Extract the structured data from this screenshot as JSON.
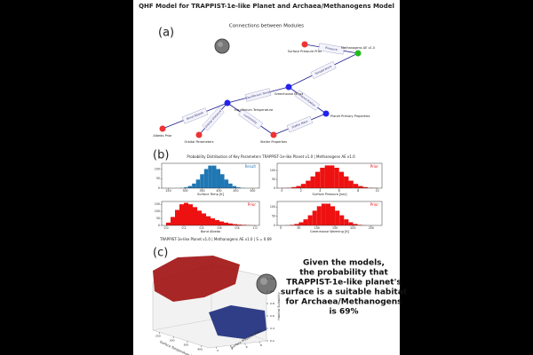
{
  "title": "QHF Model for TRAPPIST-1e-like Planet and Archaea/Methanogens Model",
  "panel_a": {
    "label": "(a)",
    "title": "Connections between Modules",
    "nodes": [
      {
        "label": "Albedo Prior",
        "color": "#ee3333"
      },
      {
        "label": "Orbital Parameters",
        "color": "#ee3333"
      },
      {
        "label": "Equilibrium Temperature",
        "color": "#2222ee"
      },
      {
        "label": "Greenhouse Effect",
        "color": "#2222ee"
      },
      {
        "label": "Stellar Properties",
        "color": "#ee3333"
      },
      {
        "label": "Planet Primary Properties",
        "color": "#2222ee"
      },
      {
        "label": "Surface Pressure Prior",
        "color": "#ee3333"
      },
      {
        "label": "Methanogens AE v1.0",
        "color": "#22bb22"
      }
    ],
    "edges": [
      {
        "label": "Bond Albedo"
      },
      {
        "label": "Orbital Distance"
      },
      {
        "label": "Equilibrium Temp"
      },
      {
        "label": "Luminosity"
      },
      {
        "label": "Planet Radius"
      },
      {
        "label": "Stellar Mass"
      },
      {
        "label": "Temperature"
      },
      {
        "label": "Pressure"
      }
    ]
  },
  "panel_b": {
    "label": "(b)",
    "title": "Probability Distribution of Key Parameters  TRAPPIST-1e-like Planet v1.0 | Methanogens AE v1.0"
  },
  "chart_data": [
    {
      "type": "histogram",
      "name": "Result",
      "color": "#1f77b4",
      "xlabel": "Surface Temp [K]",
      "bins": [
        260,
        272,
        284,
        296,
        308,
        320,
        332,
        344,
        356,
        368,
        380,
        392,
        404,
        416,
        428,
        440,
        452,
        464,
        476,
        488,
        500
      ],
      "counts": [
        0,
        0,
        1,
        4,
        11,
        24,
        45,
        73,
        100,
        118,
        118,
        100,
        73,
        45,
        24,
        11,
        4,
        1,
        0,
        0
      ],
      "xlim": [
        230,
        520
      ],
      "xticks": [
        250,
        300,
        350,
        400,
        450,
        500
      ],
      "ylim": [
        0,
        130
      ],
      "yticks": [
        0,
        50,
        100
      ]
    },
    {
      "type": "histogram",
      "name": "Prior",
      "color": "#ee1111",
      "xlabel": "Surface Pressure [bar]",
      "bins": [
        0,
        0.5,
        1,
        1.5,
        2,
        2.5,
        3,
        3.5,
        4,
        4.5,
        5,
        5.5,
        6,
        6.5,
        7,
        7.5,
        8,
        8.5,
        9,
        9.5,
        10
      ],
      "counts": [
        1,
        2,
        6,
        12,
        24,
        42,
        66,
        92,
        115,
        128,
        128,
        115,
        92,
        66,
        42,
        24,
        12,
        6,
        2,
        1
      ],
      "xlim": [
        -0.5,
        10.5
      ],
      "xticks": [
        0,
        2,
        4,
        6,
        8,
        10
      ],
      "ylim": [
        0,
        140
      ],
      "yticks": [
        0,
        50,
        100
      ]
    },
    {
      "type": "histogram",
      "name": "Prior",
      "color": "#ee1111",
      "xlabel": "Bond Albedo",
      "bins": [
        0,
        0.05,
        0.1,
        0.15,
        0.2,
        0.25,
        0.3,
        0.35,
        0.4,
        0.45,
        0.5,
        0.55,
        0.6,
        0.65,
        0.7,
        0.75,
        0.8,
        0.85,
        0.9,
        0.95,
        1
      ],
      "counts": [
        20,
        60,
        110,
        150,
        160,
        150,
        130,
        105,
        85,
        65,
        50,
        38,
        28,
        20,
        14,
        9,
        6,
        4,
        2,
        1
      ],
      "xlim": [
        -0.05,
        1.05
      ],
      "xticks": [
        {
          "value": 0,
          "label": "0.0"
        },
        0.2,
        0.4,
        0.6,
        0.8,
        {
          "value": 1,
          "label": "1.0"
        }
      ],
      "ylim": [
        0,
        170
      ],
      "yticks": [
        0,
        50,
        100,
        150
      ]
    },
    {
      "type": "histogram",
      "name": "Prior",
      "color": "#ee1111",
      "xlabel": "Greenhouse Warming [K]",
      "bins": [
        0,
        12.5,
        25,
        37.5,
        50,
        62.5,
        75,
        87.5,
        100,
        112.5,
        125,
        137.5,
        150,
        162.5,
        175,
        187.5,
        200,
        212.5,
        225,
        237.5,
        250
      ],
      "counts": [
        0,
        1,
        3,
        8,
        17,
        33,
        55,
        80,
        104,
        118,
        118,
        104,
        80,
        55,
        33,
        17,
        8,
        3,
        1,
        0
      ],
      "xlim": [
        -10,
        280
      ],
      "xticks": [
        0,
        50,
        100,
        150,
        200,
        250
      ],
      "ylim": [
        0,
        130
      ],
      "yticks": [
        0,
        50,
        100
      ]
    }
  ],
  "panel_c": {
    "label": "(c)",
    "caption": "TRAPPIST-1e-like Planet v1.0 | Methanogens AE v1.0 | S = 0.69",
    "xlabel": "Surface Temperature [K]",
    "ylabel": "Surface Pressure [bar]",
    "zlabel": "Habitat Suitability",
    "xticks": [
      250,
      300,
      350,
      400
    ],
    "yticks": [
      2,
      4,
      6,
      8
    ],
    "zticks": [
      0.2,
      0.4,
      0.6,
      0.8,
      {
        "value": 1,
        "label": "1.0"
      },
      1.2
    ],
    "statement": [
      "Given the models,",
      "the probability that",
      "TRAPPIST-1e-like planet's",
      "surface  is a suitable habitat",
      "for Archaea/Methanogens",
      "is 69%"
    ]
  }
}
